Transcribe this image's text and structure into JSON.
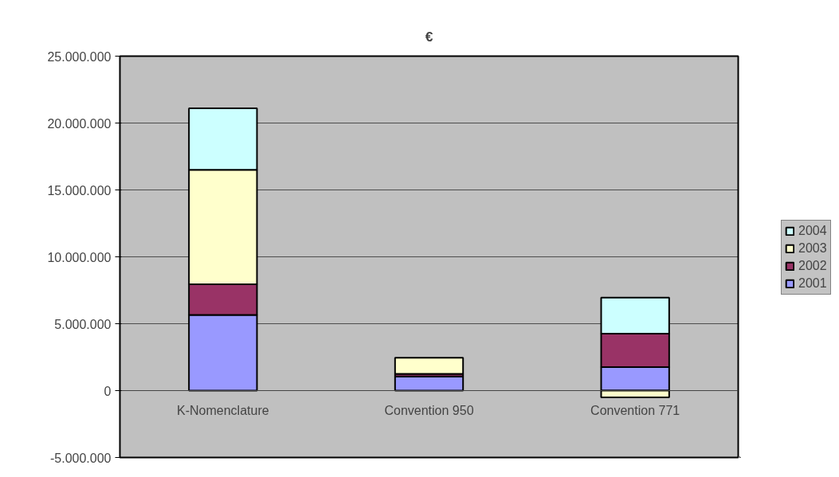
{
  "chart_data": {
    "type": "bar",
    "title": "€",
    "stacked": true,
    "categories": [
      "K-Nomenclature",
      "Convention 950",
      "Convention 771"
    ],
    "series": [
      {
        "name": "2001",
        "color": "#9999ff",
        "values": [
          5650000,
          1050000,
          1750000
        ]
      },
      {
        "name": "2002",
        "color": "#993366",
        "values": [
          2300000,
          200000,
          2500000
        ]
      },
      {
        "name": "2003",
        "color": "#ffffcc",
        "values": [
          8550000,
          1200000,
          -500000
        ]
      },
      {
        "name": "2004",
        "color": "#ccffff",
        "values": [
          4600000,
          null,
          2700000
        ]
      }
    ],
    "ylim": [
      -5000000,
      25000000
    ],
    "yticks": [
      {
        "value": -5000000,
        "label": "-5.000.000"
      },
      {
        "value": 0,
        "label": "0"
      },
      {
        "value": 5000000,
        "label": "5.000.000"
      },
      {
        "value": 10000000,
        "label": "10.000.000"
      },
      {
        "value": 15000000,
        "label": "15.000.000"
      },
      {
        "value": 20000000,
        "label": "20.000.000"
      },
      {
        "value": 25000000,
        "label": "25.000.000"
      }
    ],
    "grid": "y",
    "legend": "right"
  }
}
